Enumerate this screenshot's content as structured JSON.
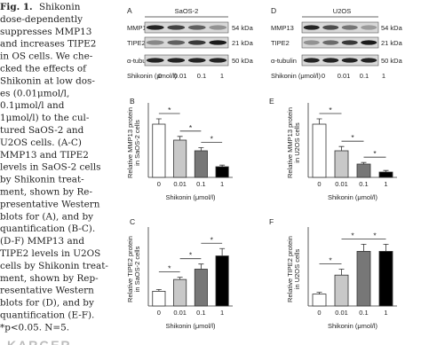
{
  "caption": {
    "lead": "Fig. 1.",
    "lines": [
      "Shikonin",
      "dose-dependently",
      "suppresses MMP13",
      "and increases TIPE2",
      "in OS cells. We che-",
      "cked the effects of",
      "Shikonin at low dos-",
      "es (0.01μmol/l,",
      "0.1μmol/l and",
      "1μmol/l) to the cul-",
      "tured SaOS-2 and",
      "U2OS cells. (A-C)",
      "MMP13 and TIPE2",
      "levels in SaOS-2 cells",
      "by Shikonin treat-",
      "ment, shown by Re-",
      "presentative Western",
      "blots for (A), and by",
      "quantification (B-C).",
      "(D-F) MMP13 and",
      "TIPE2 levels in U2OS",
      "cells by Shikonin treat-",
      "ment, shown by Rep-",
      "resentative Western",
      "blots for (D), and by",
      "quantification (E-F).",
      "*p<0.05. N=5."
    ]
  },
  "publisher": "KARGER",
  "blots": [
    {
      "letter": "A",
      "cell": "SaOS-2",
      "rows": [
        "MMP13",
        "TIPE2",
        "α-tubulin"
      ],
      "sizes": [
        "54 kDa",
        "21 kDa",
        "50 kDa"
      ],
      "treatment": "Shikonin (μmol/l)",
      "doses": [
        "0",
        "0.01",
        "0.1",
        "1"
      ]
    },
    {
      "letter": "D",
      "cell": "U2OS",
      "rows": [
        "MMP13",
        "TIPE2",
        "α-tubulin"
      ],
      "sizes": [
        "54 kDa",
        "21 kDa",
        "50 kDa"
      ],
      "treatment": "Shikonin (μmol/l)",
      "doses": [
        "0",
        "0.01",
        "0.1",
        "1"
      ]
    }
  ],
  "charts": [
    {
      "type": "bar",
      "letter": "B",
      "ylabel": [
        "Relative MMP13 protein",
        "in SaOS-2 cells"
      ],
      "categories": [
        "0",
        "0.01",
        "0.1",
        "1"
      ],
      "values": [
        1.0,
        0.7,
        0.5,
        0.2
      ],
      "errors": [
        0.1,
        0.07,
        0.06,
        0.03
      ],
      "xlabel": "Shikonin (μmol/l)",
      "ylim": [
        0,
        1.3
      ],
      "colors": [
        "#ffffff",
        "#c8c8c8",
        "#777777",
        "#000000"
      ],
      "significance": [
        "*",
        "*",
        "*"
      ]
    },
    {
      "type": "bar",
      "letter": "C",
      "ylabel": [
        "Relative TIPE2 protein",
        "in SaOS-2 cells"
      ],
      "categories": [
        "0",
        "0.01",
        "0.1",
        "1"
      ],
      "values": [
        1.0,
        1.8,
        2.5,
        3.4
      ],
      "errors": [
        0.12,
        0.15,
        0.35,
        0.5
      ],
      "xlabel": "Shikonin (μmol/l)",
      "ylim": [
        0,
        5
      ],
      "colors": [
        "#ffffff",
        "#c8c8c8",
        "#777777",
        "#000000"
      ],
      "significance": [
        "*",
        "*",
        "*"
      ]
    },
    {
      "type": "bar",
      "letter": "E",
      "ylabel": [
        "Relative MMP13 protein",
        "in U2OS cells"
      ],
      "categories": [
        "0",
        "0.01",
        "0.1",
        "1"
      ],
      "values": [
        1.0,
        0.5,
        0.25,
        0.1
      ],
      "errors": [
        0.1,
        0.08,
        0.03,
        0.03
      ],
      "xlabel": "Shikonin (μmol/l)",
      "ylim": [
        0,
        1.3
      ],
      "colors": [
        "#ffffff",
        "#c8c8c8",
        "#777777",
        "#000000"
      ],
      "significance": [
        "*",
        "*",
        "*"
      ]
    },
    {
      "type": "bar",
      "letter": "F",
      "ylabel": [
        "Relative TIPE2 protein",
        "in U2OS cells"
      ],
      "categories": [
        "0",
        "0.01",
        "0.1",
        "1"
      ],
      "values": [
        1.0,
        2.6,
        4.6,
        4.6
      ],
      "errors": [
        0.15,
        0.5,
        0.6,
        0.6
      ],
      "xlabel": "Shikonin (μmol/l)",
      "ylim": [
        0,
        6.2
      ],
      "colors": [
        "#ffffff",
        "#c8c8c8",
        "#777777",
        "#000000"
      ],
      "significance": [
        "*",
        "*",
        "*"
      ]
    }
  ]
}
